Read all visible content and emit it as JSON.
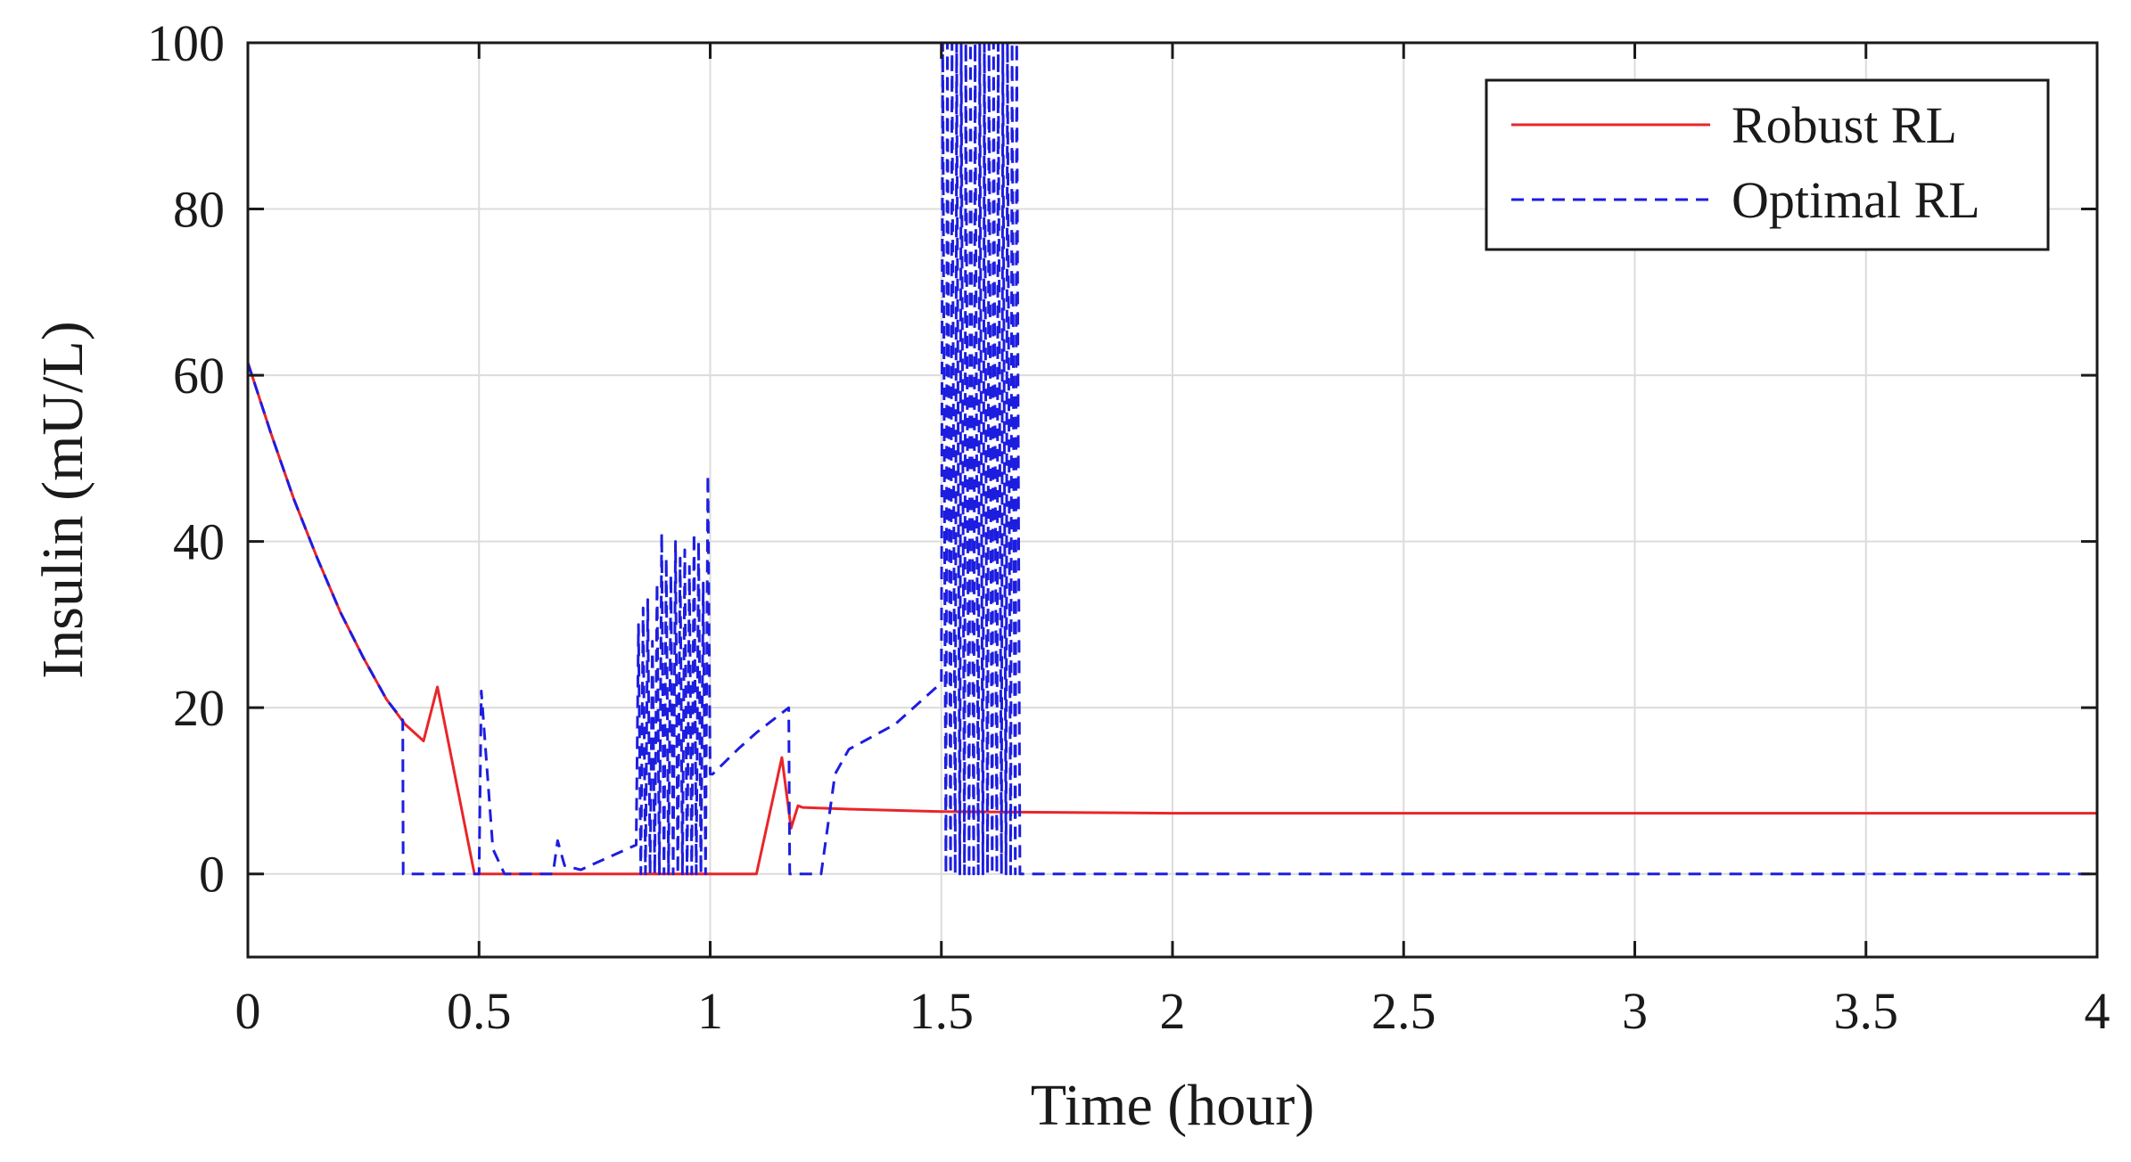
{
  "chart_data": {
    "type": "line",
    "title": "",
    "xlabel": "Time (hour)",
    "ylabel": "Insulin (mU/L)",
    "xlim": [
      0,
      4
    ],
    "ylim": [
      -10,
      100
    ],
    "xticks": [
      0,
      0.5,
      1,
      1.5,
      2,
      2.5,
      3,
      3.5,
      4
    ],
    "xtick_labels": [
      "0",
      "0.5",
      "1",
      "1.5",
      "2",
      "2.5",
      "3",
      "3.5",
      "4"
    ],
    "yticks": [
      0,
      20,
      40,
      60,
      80,
      100
    ],
    "ytick_labels": [
      "0",
      "20",
      "40",
      "60",
      "80",
      "100"
    ],
    "grid": true,
    "legend_position": "top-right",
    "series": [
      {
        "name": "Robust RL",
        "color": "#e8262a",
        "style": "solid",
        "x": [
          0,
          0.05,
          0.1,
          0.15,
          0.2,
          0.25,
          0.3,
          0.34,
          0.38,
          0.41,
          0.49,
          0.6,
          0.8,
          1.0,
          1.1,
          1.155,
          1.175,
          1.19,
          1.2,
          1.3,
          1.5,
          2.0,
          3.0,
          4.0
        ],
        "y": [
          61.5,
          53,
          45,
          38,
          31.5,
          26,
          21,
          18,
          16,
          22.5,
          0,
          0,
          0,
          0,
          0,
          14,
          5.5,
          8.2,
          8,
          7.8,
          7.5,
          7.3,
          7.3,
          7.3
        ]
      },
      {
        "name": "Optimal RL",
        "color": "#1d1de0",
        "style": "dashed",
        "x": [
          0,
          0.05,
          0.1,
          0.15,
          0.2,
          0.25,
          0.3,
          0.335,
          0.336,
          0.345,
          0.5,
          0.505,
          0.53,
          0.555,
          0.66,
          0.67,
          0.685,
          0.72,
          0.84,
          0.845,
          0.85,
          0.855,
          0.86,
          0.865,
          0.87,
          0.875,
          0.88,
          0.885,
          0.89,
          0.895,
          0.9,
          0.905,
          0.91,
          0.915,
          0.92,
          0.925,
          0.93,
          0.935,
          0.94,
          0.945,
          0.95,
          0.955,
          0.96,
          0.965,
          0.97,
          0.975,
          0.98,
          0.985,
          0.99,
          0.995,
          1.0,
          1.005,
          1.06,
          1.1,
          1.17,
          1.172,
          1.24,
          1.27,
          1.3,
          1.4,
          1.5,
          1.503,
          1.51,
          1.513,
          1.52,
          1.523,
          1.53,
          1.533,
          1.54,
          1.543,
          1.55,
          1.553,
          1.56,
          1.563,
          1.57,
          1.573,
          1.58,
          1.583,
          1.59,
          1.593,
          1.6,
          1.603,
          1.61,
          1.613,
          1.62,
          1.623,
          1.63,
          1.633,
          1.64,
          1.643,
          1.65,
          1.653,
          1.66,
          1.663,
          1.67,
          2.0,
          3.0,
          4.0
        ],
        "y": [
          61.5,
          53,
          45,
          38,
          31.5,
          26,
          21,
          18.5,
          0,
          0,
          0,
          22,
          3,
          0,
          0,
          4,
          1,
          0.5,
          3.5,
          30,
          0,
          32,
          0,
          33,
          0,
          28,
          0,
          35,
          0,
          41,
          0,
          38,
          0,
          36,
          0,
          40,
          0,
          38,
          0,
          39,
          0,
          37,
          0,
          41,
          0,
          40,
          0,
          35,
          0,
          48,
          12,
          12,
          15,
          17,
          20,
          0,
          0,
          12,
          15,
          18,
          23,
          100,
          0,
          100,
          0,
          100,
          0,
          100,
          0,
          100,
          0,
          100,
          0,
          100,
          0,
          100,
          0,
          100,
          0,
          100,
          0,
          100,
          0,
          100,
          0,
          100,
          0,
          100,
          0,
          100,
          0,
          100,
          0,
          100,
          0,
          0,
          0,
          0
        ]
      }
    ]
  }
}
